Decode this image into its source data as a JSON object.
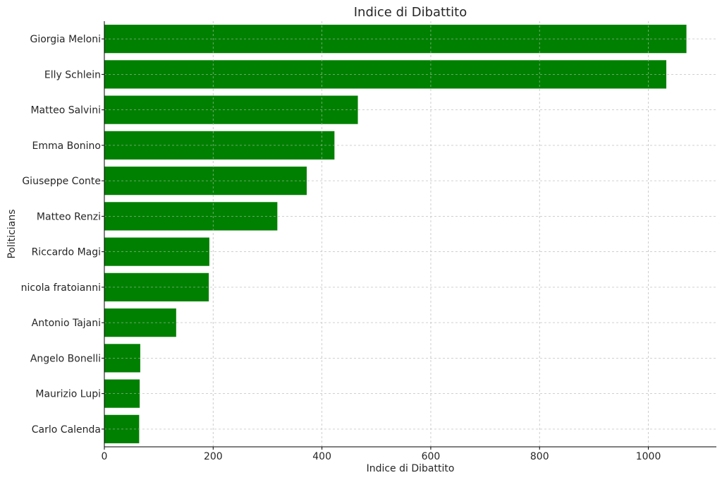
{
  "chart_data": {
    "type": "bar",
    "orientation": "horizontal",
    "title": "Indice di Dibattito",
    "xlabel": "Indice di Dibattito",
    "ylabel": "Politicians",
    "categories": [
      "Giorgia Meloni",
      "Elly Schlein",
      "Matteo Salvini",
      "Emma Bonino",
      "Giuseppe Conte",
      "Matteo Renzi",
      "Riccardo Magi",
      "nicola fratoianni",
      "Antonio Tajani",
      "Angelo Bonelli",
      "Maurizio Lupi",
      "Carlo Calenda"
    ],
    "values": [
      1070,
      1033,
      466,
      423,
      372,
      318,
      193,
      192,
      132,
      66,
      65,
      64
    ],
    "xlim": [
      0,
      1125
    ],
    "xticks": [
      0,
      200,
      400,
      600,
      800,
      1000
    ],
    "grid": true,
    "bar_color": "#008000"
  }
}
